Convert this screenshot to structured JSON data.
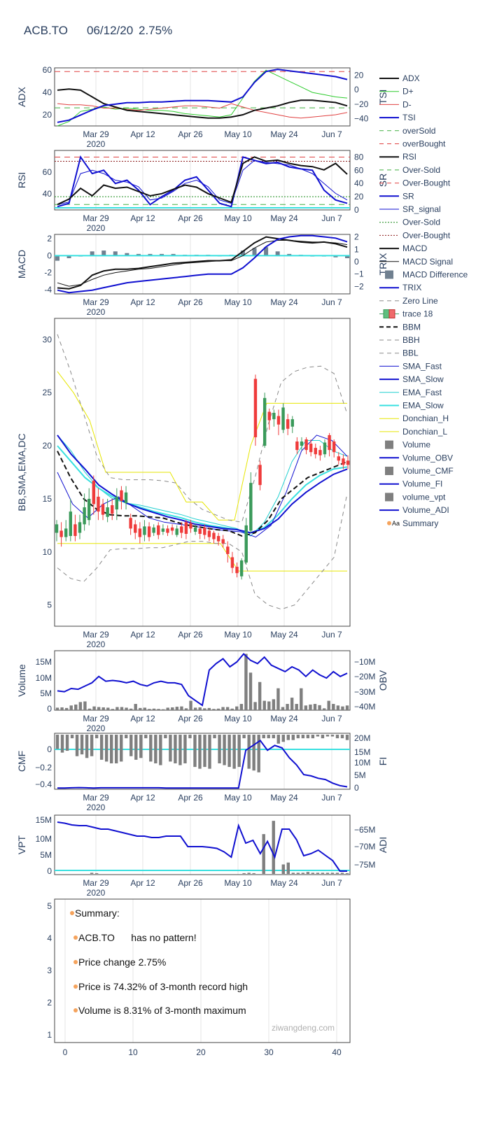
{
  "header": {
    "ticker": "ACB.TO",
    "date": "06/12/20",
    "change": "2.75%"
  },
  "x_ticks": [
    "Mar 29",
    "Apr 12",
    "Apr 26",
    "May 10",
    "May 24",
    "Jun 7"
  ],
  "x_year": "2020",
  "legend": [
    "ADX",
    "D+",
    "D-",
    "TSI",
    "overSold",
    "overBought",
    "RSI",
    "Over-Sold",
    "Over-Bought",
    "SR",
    "SR_signal",
    "Over-Sold",
    "Over-Bought",
    "MACD",
    "MACD Signal",
    "MACD Difference",
    "TRIX",
    "Zero Line",
    "trace 18",
    "BBM",
    "BBH",
    "BBL",
    "SMA_Fast",
    "SMA_Slow",
    "EMA_Fast",
    "EMA_Slow",
    "Donchian_H",
    "Donchian_L",
    "Volume",
    "Volume_OBV",
    "Volume_CMF",
    "Volume_FI",
    "volume_vpt",
    "Volume_ADI",
    "Summary"
  ],
  "summary": {
    "lines": [
      "Summary:",
      "ACB.TO      has no pattern!",
      "Price change 2.75%",
      "Price is 74.32% of 3-month record high",
      "Volume is 8.31% of 3-month maximum"
    ],
    "watermark": "ziwangdeng.com"
  },
  "colors": {
    "red": "#ef3b3b",
    "green": "#3a9a5a",
    "blue": "#1010d0",
    "cyan": "#38e0e0",
    "yellow": "#e6e600",
    "gray": "#7f7f7f",
    "text": "#2a3f5f"
  },
  "chart_data": [
    {
      "type": "line",
      "ylabel": "ADX",
      "y2label": "TSI",
      "yticks": [
        20,
        40,
        60
      ],
      "y2ticks": [
        "20",
        "0",
        "−20",
        "−40"
      ],
      "ylim": [
        10,
        62
      ],
      "y2lim": [
        -50,
        30
      ],
      "series": [
        {
          "name": "ADX",
          "values": [
            42,
            43,
            42,
            36,
            30,
            27,
            24,
            23,
            22,
            21,
            20,
            19,
            18,
            17,
            17,
            18,
            20,
            24,
            26,
            28,
            31,
            33,
            33,
            32,
            31,
            28
          ]
        },
        {
          "name": "D+",
          "values": [
            10,
            14,
            23,
            25,
            27,
            25,
            26,
            25,
            24,
            24,
            23,
            21,
            20,
            19,
            18,
            20,
            35,
            50,
            60,
            55,
            50,
            45,
            40,
            38,
            36,
            35
          ]
        },
        {
          "name": "D-",
          "values": [
            30,
            29,
            29,
            28,
            26,
            26,
            25,
            24,
            25,
            26,
            27,
            28,
            28,
            27,
            26,
            30,
            27,
            24,
            22,
            20,
            18,
            17,
            18,
            19,
            20,
            22
          ]
        },
        {
          "name": "TSI",
          "values": [
            -45,
            -42,
            -35,
            -28,
            -22,
            -20,
            -18,
            -18,
            -17,
            -17,
            -16,
            -15,
            -15,
            -15,
            -16,
            -17,
            -10,
            10,
            25,
            28,
            26,
            24,
            22,
            20,
            18,
            14
          ]
        },
        {
          "name": "overSold",
          "values": [
            -25
          ]
        },
        {
          "name": "overBought",
          "values": [
            25
          ]
        }
      ]
    },
    {
      "type": "line",
      "ylabel": "RSI",
      "y2label": "SR",
      "yticks": [
        40,
        60
      ],
      "y2ticks": [
        "80",
        "60",
        "40",
        "20",
        "0"
      ],
      "ylim": [
        25,
        80
      ],
      "y2lim": [
        0,
        90
      ],
      "series": [
        {
          "name": "RSI",
          "values": [
            30,
            35,
            45,
            38,
            48,
            45,
            46,
            42,
            38,
            40,
            44,
            48,
            46,
            40,
            36,
            32,
            68,
            74,
            70,
            71,
            68,
            66,
            65,
            62,
            68,
            58
          ]
        },
        {
          "name": "SR",
          "values": [
            5,
            10,
            80,
            55,
            60,
            40,
            45,
            30,
            8,
            20,
            30,
            45,
            50,
            30,
            10,
            5,
            80,
            75,
            70,
            72,
            65,
            62,
            60,
            30,
            15,
            10
          ]
        },
        {
          "name": "SR_signal",
          "values": [
            8,
            12,
            55,
            60,
            55,
            45,
            42,
            35,
            15,
            18,
            28,
            40,
            45,
            35,
            15,
            10,
            60,
            75,
            72,
            70,
            68,
            62,
            55,
            40,
            25,
            15
          ]
        },
        {
          "name": "Over-Sold",
          "values": [
            30
          ]
        },
        {
          "name": "Over-Bought",
          "values": [
            70
          ]
        }
      ]
    },
    {
      "type": "line",
      "ylabel": "MACD",
      "y2label": "TRIX",
      "yticks": [
        -4,
        -2,
        0,
        2
      ],
      "y2ticks": [
        "2",
        "1",
        "0",
        "−1",
        "−2"
      ],
      "ylim": [
        -4.5,
        2.5
      ],
      "y2lim": [
        -2.6,
        2.2
      ],
      "series": [
        {
          "name": "MACD",
          "values": [
            -3.8,
            -3.9,
            -3.5,
            -2.3,
            -1.8,
            -1.6,
            -1.6,
            -1.5,
            -1.3,
            -1.1,
            -0.9,
            -0.8,
            -0.7,
            -0.6,
            -0.6,
            -0.5,
            0.5,
            1.5,
            2.2,
            2.0,
            1.8,
            1.6,
            1.5,
            1.6,
            1.4,
            1.0
          ]
        },
        {
          "name": "MACD Signal",
          "values": [
            -3.2,
            -3.6,
            -3.4,
            -2.8,
            -2.3,
            -2.0,
            -1.8,
            -1.6,
            -1.5,
            -1.3,
            -1.1,
            -0.9,
            -0.8,
            -0.7,
            -0.6,
            -0.6,
            0.0,
            0.9,
            1.6,
            1.8,
            1.8,
            1.7,
            1.6,
            1.6,
            1.5,
            1.3
          ]
        },
        {
          "name": "TRIX",
          "values": [
            -2.3,
            -2.5,
            -2.4,
            -2.3,
            -2.1,
            -1.9,
            -1.7,
            -1.6,
            -1.5,
            -1.4,
            -1.3,
            -1.2,
            -1.1,
            -1.0,
            -1.0,
            -1.0,
            -0.5,
            0.3,
            1.2,
            1.8,
            2.0,
            2.1,
            2.1,
            2.0,
            1.9,
            1.6
          ]
        },
        {
          "name": "MACD Difference",
          "values": [
            -0.6,
            -0.3,
            -0.1,
            0.5,
            0.6,
            0.5,
            0.3,
            0.2,
            0.2,
            0.2,
            0.2,
            0.1,
            0.1,
            0.1,
            0.0,
            0.1,
            0.6,
            0.9,
            1.0,
            0.5,
            0.2,
            0.1,
            -0.1,
            -0.1,
            -0.2,
            -0.3
          ]
        }
      ]
    },
    {
      "type": "candlestick",
      "ylabel": "BB,SMA,EMA,DC",
      "yticks": [
        5,
        10,
        15,
        20,
        25,
        30
      ],
      "ylim": [
        3,
        32
      ],
      "series": [
        {
          "name": "BBM",
          "values": [
            19.5,
            17,
            15,
            14,
            13.5,
            13.4,
            13.4,
            13.3,
            13.2,
            12.8,
            12.5,
            12.3,
            12.1,
            12.0,
            11.5,
            11.8,
            13,
            15,
            16,
            17,
            17.5,
            18,
            18.5
          ]
        },
        {
          "name": "BBH",
          "values": [
            30.5,
            27,
            23,
            19,
            17,
            16.8,
            16.8,
            16.8,
            16.7,
            16.5,
            15,
            14,
            13.5,
            13,
            12.8,
            17,
            22,
            26,
            27,
            27.4,
            27.5,
            26.8,
            23
          ]
        },
        {
          "name": "BBL",
          "values": [
            8.5,
            7.5,
            7.2,
            8.5,
            10.2,
            10.3,
            10.3,
            10.4,
            10.4,
            10.7,
            11,
            11,
            10.8,
            10.8,
            10,
            6,
            5,
            4.6,
            5,
            6.5,
            8,
            9.5,
            15.5
          ]
        },
        {
          "name": "Donchian_H",
          "values": [
            27,
            25,
            22.4,
            17.5,
            17.5,
            17.5,
            17.5,
            17.5,
            14.7,
            14.7,
            13,
            13,
            20,
            24,
            24,
            24,
            24,
            24,
            24
          ]
        },
        {
          "name": "Donchian_L",
          "values": [
            10.8,
            10.8,
            10.8,
            10.8,
            10.8,
            10.8,
            10.8,
            10.8,
            10.8,
            10.8,
            8.2,
            8.2,
            8.2,
            8.2,
            8.2,
            8.2,
            8.2
          ]
        }
      ]
    },
    {
      "type": "bar",
      "ylabel": "Volume",
      "y2label": "OBV",
      "yticks": [
        "0",
        "5M",
        "10M",
        "15M"
      ],
      "y2ticks": [
        "−10M",
        "−20M",
        "−30M",
        "−40M"
      ]
    },
    {
      "type": "bar",
      "ylabel": "CMF",
      "y2label": "FI",
      "yticks": [
        "0",
        "−0.2",
        "−0.4"
      ],
      "y2ticks": [
        "20M",
        "15M",
        "10M",
        "5M",
        "0"
      ]
    },
    {
      "type": "bar",
      "ylabel": "VPT",
      "y2label": "ADI",
      "yticks": [
        "0",
        "5M",
        "10M",
        "15M"
      ],
      "y2ticks": [
        "−65M",
        "−70M",
        "−75M"
      ]
    },
    {
      "type": "scatter",
      "yticks": [
        "1",
        "2",
        "3",
        "4",
        "5"
      ],
      "xticks": [
        "0",
        "10",
        "20",
        "30",
        "40"
      ]
    }
  ]
}
